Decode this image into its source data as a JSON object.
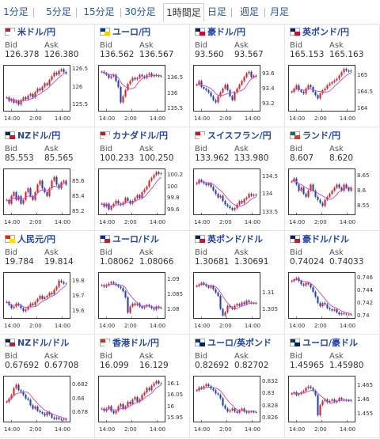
{
  "tabs": [
    {
      "label": "1分足",
      "active": false
    },
    {
      "label": "5分足",
      "active": false
    },
    {
      "label": "15分足",
      "active": false
    },
    {
      "label": "30分足",
      "active": false
    },
    {
      "label": "1時間足",
      "active": true
    },
    {
      "label": "日足",
      "active": false
    },
    {
      "label": "週足",
      "active": false
    },
    {
      "label": "月足",
      "active": false
    }
  ],
  "bid_label": "Bid",
  "ask_label": "Ask",
  "x_ticks": [
    "14:00",
    "2:00",
    "14:00"
  ],
  "pairs": [
    {
      "name": "米ドル/円",
      "bid": "126.378",
      "ask": "126.380",
      "flag": [
        "#b22234",
        "#ffffff"
      ],
      "y_ticks": [
        "126.5",
        "126",
        "125.5"
      ],
      "ylim": [
        125.3,
        126.6
      ],
      "chart_data": {
        "type": "candlestick",
        "close": [
          125.7,
          125.6,
          125.65,
          125.55,
          125.6,
          125.5,
          125.62,
          125.7,
          125.65,
          125.75,
          125.8,
          125.7,
          125.85,
          125.95,
          125.9,
          126.0,
          126.1,
          126.05,
          126.2,
          126.3,
          126.4,
          126.35,
          126.45,
          126.5,
          126.42,
          126.38
        ]
      }
    },
    {
      "name": "ユーロ/円",
      "bid": "136.562",
      "ask": "136.567",
      "flag": [
        "#003399",
        "#ffcc00"
      ],
      "y_ticks": [
        "136.5",
        "136",
        "135.5"
      ],
      "ylim": [
        135.4,
        136.9
      ],
      "chart_data": {
        "type": "candlestick",
        "close": [
          136.7,
          136.65,
          136.6,
          136.5,
          136.55,
          136.6,
          136.4,
          136.2,
          135.7,
          135.9,
          136.1,
          136.3,
          136.4,
          136.5,
          136.45,
          136.5,
          136.6,
          136.55,
          136.5,
          136.6,
          136.65,
          136.55,
          136.6,
          136.58,
          136.55,
          136.56
        ]
      }
    },
    {
      "name": "豪ドル/円",
      "bid": "93.560",
      "ask": "93.567",
      "flag": [
        "#012169",
        "#e4002b"
      ],
      "y_ticks": [
        "93.6",
        "93.4",
        "93.2"
      ],
      "ylim": [
        93.1,
        93.7
      ],
      "chart_data": {
        "type": "candlestick",
        "close": [
          93.45,
          93.5,
          93.42,
          93.4,
          93.38,
          93.35,
          93.3,
          93.25,
          93.22,
          93.3,
          93.35,
          93.4,
          93.45,
          93.38,
          93.3,
          93.25,
          93.35,
          93.4,
          93.45,
          93.5,
          93.55,
          93.6,
          93.62,
          93.55,
          93.57,
          93.56
        ]
      }
    },
    {
      "name": "英ポンド/円",
      "bid": "165.153",
      "ask": "165.163",
      "flag": [
        "#012169",
        "#c8102e"
      ],
      "y_ticks": [
        "165",
        "164.5",
        "164"
      ],
      "ylim": [
        163.9,
        165.3
      ],
      "chart_data": {
        "type": "candlestick",
        "close": [
          164.5,
          164.6,
          164.7,
          164.55,
          164.5,
          164.45,
          164.6,
          164.7,
          164.65,
          164.5,
          164.4,
          164.3,
          164.45,
          164.55,
          164.6,
          164.7,
          164.75,
          164.8,
          164.85,
          164.9,
          165.0,
          165.1,
          165.2,
          165.15,
          165.12,
          165.15
        ]
      }
    },
    {
      "name": "NZドル/円",
      "bid": "85.553",
      "ask": "85.565",
      "flag": [
        "#012169",
        "#cc142b"
      ],
      "y_ticks": [
        "85.6",
        "85.4",
        "85.2"
      ],
      "ylim": [
        85.15,
        85.75
      ],
      "chart_data": {
        "type": "candlestick",
        "close": [
          85.35,
          85.3,
          85.4,
          85.45,
          85.35,
          85.4,
          85.3,
          85.35,
          85.45,
          85.5,
          85.4,
          85.35,
          85.45,
          85.55,
          85.6,
          85.5,
          85.45,
          85.4,
          85.5,
          85.6,
          85.65,
          85.55,
          85.5,
          85.58,
          85.6,
          85.55
        ]
      }
    },
    {
      "name": "カナダドル/円",
      "bid": "100.233",
      "ask": "100.250",
      "flag": [
        "#ff0000",
        "#ffffff"
      ],
      "y_ticks": [
        "100.2",
        "100",
        "99.8",
        "99.6"
      ],
      "ylim": [
        99.5,
        100.3
      ],
      "chart_data": {
        "type": "candlestick",
        "close": [
          99.7,
          99.65,
          99.7,
          99.6,
          99.65,
          99.7,
          99.75,
          99.7,
          99.68,
          99.72,
          99.8,
          99.75,
          99.7,
          99.75,
          99.8,
          99.85,
          99.8,
          99.9,
          99.95,
          100.0,
          100.1,
          100.15,
          100.2,
          100.25,
          100.22,
          100.23
        ]
      }
    },
    {
      "name": "スイスフラン/円",
      "bid": "133.962",
      "ask": "133.980",
      "flag": [
        "#ff0000",
        "#ffffff"
      ],
      "y_ticks": [
        "134.5",
        "134",
        "133.5"
      ],
      "ylim": [
        133.4,
        134.7
      ],
      "chart_data": {
        "type": "candlestick",
        "close": [
          134.3,
          134.4,
          134.35,
          134.3,
          134.25,
          134.3,
          134.2,
          134.1,
          134.0,
          133.9,
          133.95,
          133.8,
          133.7,
          133.65,
          133.6,
          133.55,
          133.6,
          133.7,
          133.8,
          133.75,
          133.85,
          133.9,
          134.0,
          133.95,
          133.98,
          133.96
        ]
      }
    },
    {
      "name": "ランド/円",
      "bid": "8.607",
      "ask": "8.620",
      "flag": [
        "#007a4d",
        "#de3831"
      ],
      "y_ticks": [
        "8.65",
        "8.6",
        "8.55"
      ],
      "ylim": [
        8.52,
        8.67
      ],
      "chart_data": {
        "type": "candlestick",
        "close": [
          8.63,
          8.64,
          8.62,
          8.6,
          8.61,
          8.59,
          8.58,
          8.6,
          8.62,
          8.6,
          8.58,
          8.57,
          8.56,
          8.55,
          8.57,
          8.58,
          8.59,
          8.6,
          8.61,
          8.62,
          8.61,
          8.6,
          8.62,
          8.61,
          8.6,
          8.61
        ]
      }
    },
    {
      "name": "人民元/円",
      "bid": "19.784",
      "ask": "19.814",
      "flag": [
        "#de2910",
        "#ffde00"
      ],
      "y_ticks": [
        "19.8",
        "19.7",
        "19.6"
      ],
      "ylim": [
        19.55,
        19.85
      ],
      "chart_data": {
        "type": "candlestick",
        "close": [
          19.66,
          19.64,
          19.62,
          19.63,
          19.65,
          19.64,
          19.62,
          19.6,
          19.61,
          19.63,
          19.65,
          19.64,
          19.66,
          19.68,
          19.7,
          19.68,
          19.69,
          19.7,
          19.72,
          19.71,
          19.74,
          19.76,
          19.8,
          19.79,
          19.78,
          19.78
        ]
      }
    },
    {
      "name": "ユーロ/ドル",
      "bid": "1.08062",
      "ask": "1.08066",
      "flag": [
        "#003399",
        "#b22234"
      ],
      "y_ticks": [
        "1.09",
        "1.085",
        "1.08"
      ],
      "ylim": [
        1.077,
        1.092
      ],
      "chart_data": {
        "type": "candlestick",
        "close": [
          1.088,
          1.0875,
          1.088,
          1.0885,
          1.089,
          1.0885,
          1.088,
          1.0875,
          1.087,
          1.086,
          1.084,
          1.079,
          1.081,
          1.082,
          1.0815,
          1.082,
          1.081,
          1.0805,
          1.081,
          1.0815,
          1.081,
          1.0805,
          1.08,
          1.081,
          1.0806,
          1.0806
        ]
      }
    },
    {
      "name": "英ポンド/ドル",
      "bid": "1.30681",
      "ask": "1.30691",
      "flag": [
        "#012169",
        "#b22234"
      ],
      "y_ticks": [
        "1.31",
        "1.305"
      ],
      "ylim": [
        1.302,
        1.316
      ],
      "chart_data": {
        "type": "candlestick",
        "close": [
          1.312,
          1.3125,
          1.313,
          1.3125,
          1.312,
          1.3115,
          1.312,
          1.311,
          1.31,
          1.309,
          1.305,
          1.303,
          1.304,
          1.306,
          1.3055,
          1.305,
          1.306,
          1.3065,
          1.306,
          1.307,
          1.3065,
          1.3075,
          1.307,
          1.3068,
          1.3068,
          1.3068
        ]
      }
    },
    {
      "name": "豪ドル/ドル",
      "bid": "0.74024",
      "ask": "0.74033",
      "flag": [
        "#012169",
        "#b22234"
      ],
      "y_ticks": [
        "0.746",
        "0.744",
        "0.742",
        "0.74"
      ],
      "ylim": [
        0.7395,
        0.7468
      ],
      "chart_data": {
        "type": "candlestick",
        "close": [
          0.7455,
          0.7458,
          0.746,
          0.7455,
          0.745,
          0.7448,
          0.7452,
          0.745,
          0.7445,
          0.7438,
          0.743,
          0.742,
          0.7415,
          0.742,
          0.7418,
          0.7412,
          0.741,
          0.7408,
          0.741,
          0.7405,
          0.7402,
          0.7404,
          0.7403,
          0.7402,
          0.7402,
          0.7402
        ]
      }
    },
    {
      "name": "NZドル/ドル",
      "bid": "0.67692",
      "ask": "0.67708",
      "flag": [
        "#012169",
        "#b22234"
      ],
      "y_ticks": [
        "0.682",
        "0.68",
        "0.678"
      ],
      "ylim": [
        0.6765,
        0.6832
      ],
      "chart_data": {
        "type": "candlestick",
        "close": [
          0.6795,
          0.68,
          0.6805,
          0.6815,
          0.682,
          0.6812,
          0.681,
          0.6805,
          0.68,
          0.6798,
          0.679,
          0.6785,
          0.6788,
          0.6782,
          0.678,
          0.6778,
          0.6775,
          0.678,
          0.6777,
          0.6772,
          0.677,
          0.6772,
          0.677,
          0.6769,
          0.677,
          0.6769
        ]
      }
    },
    {
      "name": "香港ドル/円",
      "bid": "16.099",
      "ask": "16.129",
      "flag": [
        "#de2910",
        "#ffffff"
      ],
      "y_ticks": [
        "16.1",
        "16.05",
        "16",
        "15.95"
      ],
      "ylim": [
        15.93,
        16.13
      ],
      "chart_data": {
        "type": "candlestick",
        "close": [
          15.99,
          15.98,
          15.99,
          16.0,
          15.98,
          15.97,
          15.98,
          16.0,
          16.01,
          15.99,
          16.0,
          16.02,
          16.01,
          16.03,
          16.04,
          16.02,
          16.03,
          16.05,
          16.06,
          16.08,
          16.07,
          16.09,
          16.1,
          16.11,
          16.1,
          16.1
        ]
      }
    },
    {
      "name": "ユーロ/英ポンド",
      "bid": "0.82692",
      "ask": "0.82702",
      "flag": [
        "#003399",
        "#012169"
      ],
      "y_ticks": [
        "0.832",
        "0.83",
        "0.828",
        "0.826"
      ],
      "ylim": [
        0.8252,
        0.8328
      ],
      "chart_data": {
        "type": "candlestick",
        "close": [
          0.8305,
          0.831,
          0.8308,
          0.8312,
          0.8315,
          0.8312,
          0.8308,
          0.8305,
          0.83,
          0.8298,
          0.8292,
          0.828,
          0.8275,
          0.827,
          0.8272,
          0.8275,
          0.827,
          0.8268,
          0.8272,
          0.8275,
          0.827,
          0.8268,
          0.827,
          0.827,
          0.8269,
          0.8269
        ]
      }
    },
    {
      "name": "ユーロ/豪ドル",
      "bid": "1.45965",
      "ask": "1.45980",
      "flag": [
        "#003399",
        "#012169"
      ],
      "y_ticks": [
        "1.465",
        "1.46",
        "1.455"
      ],
      "ylim": [
        1.452,
        1.468
      ],
      "chart_data": {
        "type": "candlestick",
        "close": [
          1.462,
          1.4625,
          1.4615,
          1.462,
          1.4625,
          1.463,
          1.464,
          1.4645,
          1.464,
          1.463,
          1.4615,
          1.4545,
          1.458,
          1.4595,
          1.46,
          1.459,
          1.4595,
          1.46,
          1.459,
          1.4595,
          1.4605,
          1.46,
          1.4598,
          1.4597,
          1.4596,
          1.4597
        ]
      }
    }
  ]
}
